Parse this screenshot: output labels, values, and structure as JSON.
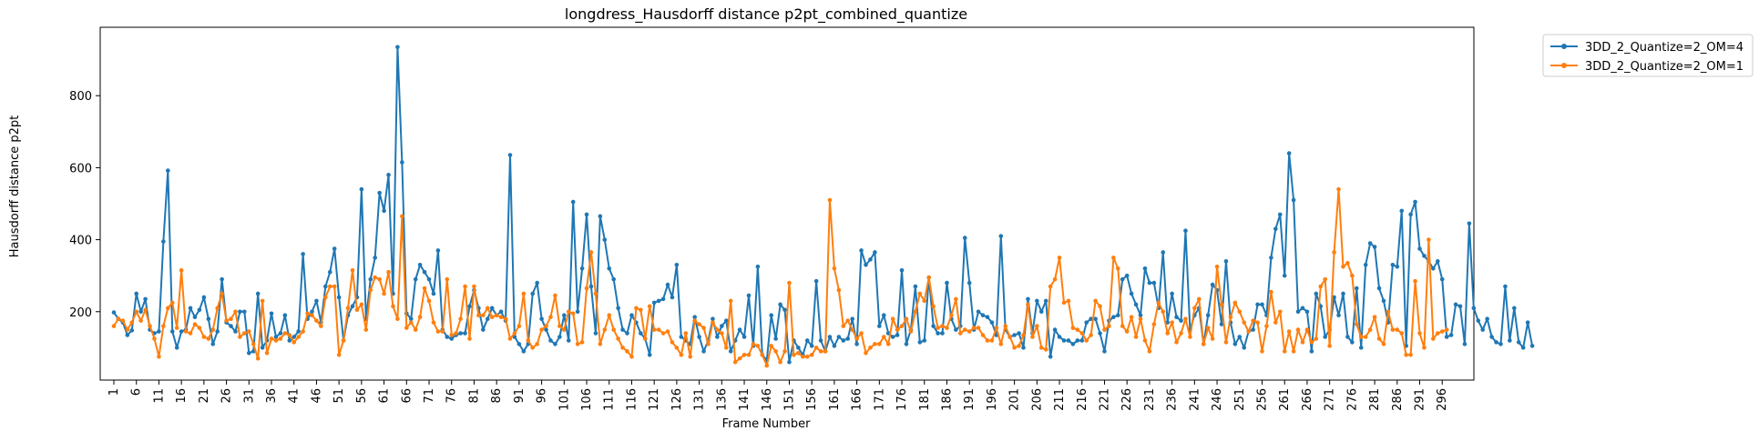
{
  "chart_data": {
    "type": "line",
    "title": "longdress_Hausdorff distance p2pt_combined_quantize",
    "xlabel": "Frame Number",
    "ylabel": "Hausdorff distance p2pt",
    "x_range": [
      1,
      300
    ],
    "ylim": [
      10,
      990
    ],
    "x_ticks": [
      "1",
      "6",
      "11",
      "16",
      "21",
      "26",
      "31",
      "36",
      "41",
      "46",
      "51",
      "56",
      "61",
      "66",
      "71",
      "76",
      "81",
      "86",
      "91",
      "96",
      "101",
      "106",
      "111",
      "116",
      "121",
      "126",
      "131",
      "136",
      "141",
      "146",
      "151",
      "156",
      "161",
      "166",
      "171",
      "176",
      "181",
      "186",
      "191",
      "196",
      "201",
      "206",
      "211",
      "216",
      "221",
      "226",
      "231",
      "236",
      "241",
      "246",
      "251",
      "256",
      "261",
      "266",
      "271",
      "276",
      "281",
      "286",
      "291",
      "296"
    ],
    "y_ticks": [
      200,
      400,
      600,
      800
    ],
    "grid": false,
    "legend_position": "upper-right-outside",
    "series": [
      {
        "name": "3DD_2_Quantize=2_OM=4",
        "color": "#1f77b4",
        "values": [
          198,
          180,
          170,
          135,
          148,
          250,
          200,
          235,
          150,
          140,
          145,
          395,
          592,
          145,
          100,
          145,
          150,
          210,
          185,
          205,
          240,
          180,
          110,
          145,
          290,
          170,
          160,
          145,
          200,
          200,
          85,
          90,
          250,
          100,
          120,
          195,
          130,
          140,
          190,
          120,
          130,
          145,
          360,
          180,
          200,
          230,
          170,
          270,
          310,
          375,
          240,
          120,
          190,
          215,
          240,
          540,
          180,
          290,
          350,
          530,
          480,
          580,
          250,
          935,
          615,
          195,
          180,
          290,
          330,
          310,
          290,
          250,
          370,
          150,
          130,
          125,
          135,
          140,
          140,
          215,
          260,
          210,
          150,
          180,
          210,
          190,
          200,
          175,
          635,
          130,
          110,
          90,
          110,
          250,
          280,
          180,
          150,
          120,
          110,
          130,
          190,
          120,
          505,
          200,
          320,
          470,
          270,
          140,
          465,
          400,
          320,
          290,
          210,
          150,
          140,
          190,
          170,
          140,
          125,
          80,
          225,
          230,
          235,
          275,
          240,
          330,
          130,
          120,
          110,
          185,
          130,
          90,
          120,
          180,
          130,
          160,
          175,
          90,
          120,
          150,
          130,
          245,
          105,
          325,
          80,
          65,
          190,
          125,
          220,
          205,
          60,
          120,
          100,
          80,
          120,
          105,
          285,
          120,
          90,
          130,
          105,
          130,
          120,
          125,
          180,
          110,
          370,
          330,
          345,
          365,
          160,
          190,
          140,
          130,
          135,
          315,
          110,
          150,
          270,
          115,
          120,
          295,
          160,
          140,
          140,
          280,
          180,
          150,
          160,
          405,
          280,
          150,
          200,
          190,
          185,
          170,
          135,
          410,
          150,
          130,
          135,
          140,
          100,
          235,
          140,
          230,
          200,
          230,
          75,
          150,
          130,
          120,
          120,
          110,
          120,
          120,
          170,
          180,
          180,
          140,
          90,
          175,
          185,
          190,
          290,
          300,
          250,
          220,
          190,
          320,
          280,
          280,
          210,
          365,
          170,
          250,
          185,
          175,
          425,
          150,
          190,
          210,
          110,
          190,
          275,
          260,
          165,
          340,
          170,
          110,
          130,
          100,
          145,
          150,
          220,
          220,
          190,
          350,
          430,
          470,
          300,
          640,
          510,
          200,
          210,
          200,
          90,
          250,
          215,
          130,
          150,
          240,
          190,
          250,
          130,
          115,
          265,
          100,
          330,
          390,
          380,
          265,
          230,
          170,
          330,
          325,
          480,
          105,
          470,
          505,
          375,
          355,
          340,
          320,
          340,
          290,
          130,
          135,
          220,
          215,
          110,
          445,
          210,
          175,
          150,
          180,
          130,
          115,
          110,
          270,
          120,
          210,
          115,
          100,
          170,
          105
        ]
      },
      {
        "name": "3DD_2_Quantize=2_OM=1",
        "color": "#ff7f0e",
        "values": [
          160,
          180,
          175,
          150,
          170,
          200,
          175,
          205,
          160,
          125,
          75,
          160,
          210,
          225,
          155,
          315,
          145,
          140,
          165,
          155,
          130,
          125,
          150,
          210,
          250,
          175,
          180,
          200,
          130,
          140,
          145,
          110,
          70,
          230,
          85,
          125,
          120,
          125,
          140,
          135,
          115,
          130,
          145,
          195,
          190,
          175,
          160,
          240,
          270,
          270,
          80,
          120,
          210,
          315,
          205,
          220,
          150,
          260,
          295,
          290,
          250,
          310,
          215,
          180,
          465,
          155,
          170,
          150,
          185,
          265,
          230,
          170,
          145,
          145,
          290,
          135,
          140,
          180,
          270,
          125,
          270,
          190,
          190,
          210,
          185,
          190,
          185,
          180,
          125,
          140,
          160,
          250,
          120,
          100,
          110,
          150,
          160,
          185,
          245,
          160,
          150,
          200,
          195,
          110,
          115,
          265,
          365,
          250,
          110,
          150,
          190,
          150,
          125,
          100,
          90,
          75,
          210,
          205,
          125,
          215,
          150,
          150,
          140,
          145,
          115,
          100,
          80,
          140,
          75,
          175,
          165,
          155,
          110,
          170,
          150,
          140,
          100,
          230,
          60,
          70,
          80,
          80,
          110,
          105,
          80,
          50,
          105,
          90,
          60,
          90,
          280,
          80,
          85,
          75,
          75,
          80,
          100,
          90,
          90,
          510,
          320,
          260,
          160,
          175,
          150,
          125,
          140,
          85,
          100,
          110,
          110,
          130,
          110,
          180,
          150,
          160,
          180,
          145,
          200,
          250,
          230,
          295,
          215,
          155,
          160,
          155,
          190,
          235,
          140,
          150,
          145,
          155,
          155,
          135,
          120,
          120,
          155,
          110,
          160,
          130,
          100,
          105,
          135,
          220,
          130,
          160,
          100,
          95,
          270,
          290,
          350,
          225,
          230,
          155,
          150,
          140,
          120,
          135,
          230,
          215,
          150,
          160,
          350,
          320,
          160,
          145,
          185,
          130,
          180,
          120,
          90,
          165,
          225,
          200,
          140,
          170,
          115,
          140,
          180,
          130,
          210,
          235,
          110,
          155,
          125,
          325,
          220,
          115,
          185,
          225,
          200,
          170,
          145,
          175,
          170,
          90,
          160,
          255,
          170,
          200,
          90,
          145,
          90,
          150,
          115,
          150,
          115,
          125,
          270,
          290,
          105,
          365,
          540,
          325,
          335,
          300,
          165,
          130,
          130,
          150,
          185,
          125,
          110,
          200,
          150,
          150,
          140,
          80,
          80,
          285,
          140,
          100,
          400,
          125,
          140,
          145,
          150
        ]
      }
    ]
  }
}
